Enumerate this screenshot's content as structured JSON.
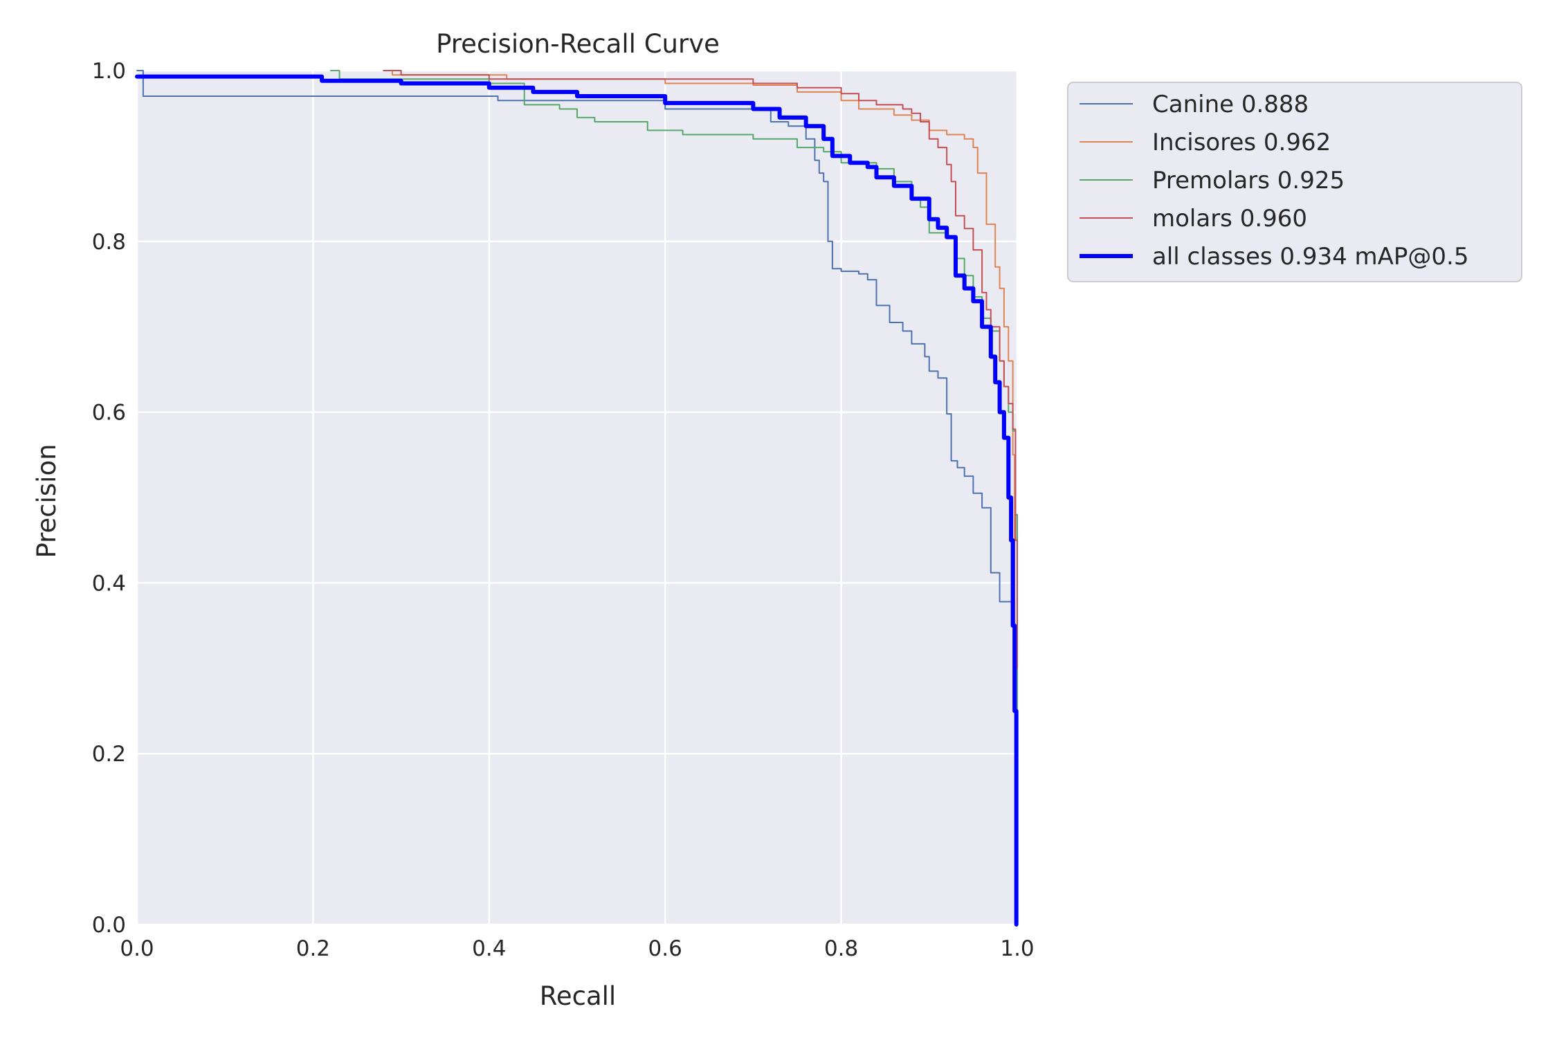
{
  "chart_data": {
    "type": "line",
    "title": "Precision-Recall Curve",
    "xlabel": "Recall",
    "ylabel": "Precision",
    "xlim": [
      0,
      1
    ],
    "ylim": [
      0,
      1
    ],
    "xticks": [
      "0.0",
      "0.2",
      "0.4",
      "0.6",
      "0.8",
      "1.0"
    ],
    "yticks": [
      "0.0",
      "0.2",
      "0.4",
      "0.6",
      "0.8",
      "1.0"
    ],
    "grid": true,
    "background": "#eaeaf2",
    "legend_position": "outside-upper-right",
    "series": [
      {
        "name": "Canine 0.888",
        "color": "#4c72b0",
        "width": 2,
        "points": [
          [
            0,
            1.0
          ],
          [
            0.005,
            1.0
          ],
          [
            0.007,
            0.97
          ],
          [
            0.4,
            0.97
          ],
          [
            0.41,
            0.965
          ],
          [
            0.6,
            0.955
          ],
          [
            0.7,
            0.955
          ],
          [
            0.72,
            0.94
          ],
          [
            0.74,
            0.935
          ],
          [
            0.76,
            0.92
          ],
          [
            0.77,
            0.895
          ],
          [
            0.775,
            0.88
          ],
          [
            0.78,
            0.87
          ],
          [
            0.785,
            0.8
          ],
          [
            0.79,
            0.768
          ],
          [
            0.8,
            0.765
          ],
          [
            0.82,
            0.762
          ],
          [
            0.83,
            0.755
          ],
          [
            0.84,
            0.725
          ],
          [
            0.855,
            0.705
          ],
          [
            0.87,
            0.695
          ],
          [
            0.88,
            0.68
          ],
          [
            0.895,
            0.665
          ],
          [
            0.9,
            0.648
          ],
          [
            0.91,
            0.64
          ],
          [
            0.92,
            0.598
          ],
          [
            0.925,
            0.543
          ],
          [
            0.932,
            0.535
          ],
          [
            0.94,
            0.525
          ],
          [
            0.95,
            0.505
          ],
          [
            0.96,
            0.488
          ],
          [
            0.97,
            0.412
          ],
          [
            0.98,
            0.378
          ],
          [
            0.995,
            0.378
          ],
          [
            0.997,
            0.25
          ],
          [
            0.999,
            0.0
          ]
        ]
      },
      {
        "name": "Incisores 0.962",
        "color": "#dd8452",
        "width": 2,
        "points": [
          [
            0.28,
            1.0
          ],
          [
            0.29,
            0.995
          ],
          [
            0.4,
            0.995
          ],
          [
            0.42,
            0.99
          ],
          [
            0.6,
            0.985
          ],
          [
            0.7,
            0.983
          ],
          [
            0.75,
            0.975
          ],
          [
            0.8,
            0.965
          ],
          [
            0.82,
            0.955
          ],
          [
            0.86,
            0.948
          ],
          [
            0.88,
            0.942
          ],
          [
            0.9,
            0.93
          ],
          [
            0.92,
            0.925
          ],
          [
            0.94,
            0.92
          ],
          [
            0.95,
            0.91
          ],
          [
            0.955,
            0.88
          ],
          [
            0.965,
            0.82
          ],
          [
            0.975,
            0.77
          ],
          [
            0.98,
            0.745
          ],
          [
            0.985,
            0.7
          ],
          [
            0.99,
            0.66
          ],
          [
            0.995,
            0.55
          ],
          [
            0.997,
            0.3
          ],
          [
            0.999,
            0.1
          ],
          [
            1.0,
            0.05
          ]
        ]
      },
      {
        "name": "Premolars 0.925",
        "color": "#55a868",
        "width": 2,
        "points": [
          [
            0.22,
            1.0
          ],
          [
            0.23,
            0.99
          ],
          [
            0.4,
            0.985
          ],
          [
            0.44,
            0.96
          ],
          [
            0.48,
            0.955
          ],
          [
            0.5,
            0.945
          ],
          [
            0.52,
            0.94
          ],
          [
            0.55,
            0.94
          ],
          [
            0.58,
            0.93
          ],
          [
            0.62,
            0.925
          ],
          [
            0.66,
            0.925
          ],
          [
            0.7,
            0.92
          ],
          [
            0.75,
            0.91
          ],
          [
            0.78,
            0.905
          ],
          [
            0.8,
            0.892
          ],
          [
            0.84,
            0.885
          ],
          [
            0.86,
            0.87
          ],
          [
            0.88,
            0.85
          ],
          [
            0.89,
            0.84
          ],
          [
            0.9,
            0.81
          ],
          [
            0.92,
            0.805
          ],
          [
            0.93,
            0.78
          ],
          [
            0.94,
            0.76
          ],
          [
            0.95,
            0.735
          ],
          [
            0.96,
            0.71
          ],
          [
            0.97,
            0.695
          ],
          [
            0.98,
            0.66
          ],
          [
            0.985,
            0.63
          ],
          [
            0.99,
            0.6
          ],
          [
            0.995,
            0.578
          ],
          [
            0.998,
            0.48
          ],
          [
            1.0,
            0.2
          ]
        ]
      },
      {
        "name": "molars 0.960",
        "color": "#c44e52",
        "width": 2,
        "points": [
          [
            0.28,
            1.0
          ],
          [
            0.3,
            0.995
          ],
          [
            0.4,
            0.99
          ],
          [
            0.6,
            0.99
          ],
          [
            0.7,
            0.985
          ],
          [
            0.75,
            0.98
          ],
          [
            0.8,
            0.973
          ],
          [
            0.82,
            0.965
          ],
          [
            0.84,
            0.96
          ],
          [
            0.87,
            0.955
          ],
          [
            0.88,
            0.95
          ],
          [
            0.89,
            0.94
          ],
          [
            0.9,
            0.92
          ],
          [
            0.91,
            0.91
          ],
          [
            0.92,
            0.89
          ],
          [
            0.925,
            0.87
          ],
          [
            0.93,
            0.83
          ],
          [
            0.94,
            0.815
          ],
          [
            0.95,
            0.79
          ],
          [
            0.96,
            0.74
          ],
          [
            0.965,
            0.72
          ],
          [
            0.97,
            0.7
          ],
          [
            0.98,
            0.66
          ],
          [
            0.985,
            0.63
          ],
          [
            0.99,
            0.61
          ],
          [
            0.995,
            0.58
          ],
          [
            0.998,
            0.45
          ],
          [
            1.0,
            0.3
          ]
        ]
      },
      {
        "name": "all classes 0.934 mAP@0.5",
        "color": "#0000ff",
        "width": 6,
        "points": [
          [
            0,
            0.993
          ],
          [
            0.2,
            0.993
          ],
          [
            0.21,
            0.988
          ],
          [
            0.3,
            0.985
          ],
          [
            0.4,
            0.98
          ],
          [
            0.45,
            0.975
          ],
          [
            0.5,
            0.97
          ],
          [
            0.6,
            0.962
          ],
          [
            0.7,
            0.955
          ],
          [
            0.73,
            0.945
          ],
          [
            0.76,
            0.935
          ],
          [
            0.78,
            0.92
          ],
          [
            0.79,
            0.9
          ],
          [
            0.81,
            0.892
          ],
          [
            0.83,
            0.887
          ],
          [
            0.84,
            0.875
          ],
          [
            0.86,
            0.865
          ],
          [
            0.88,
            0.85
          ],
          [
            0.9,
            0.826
          ],
          [
            0.91,
            0.816
          ],
          [
            0.92,
            0.805
          ],
          [
            0.93,
            0.76
          ],
          [
            0.94,
            0.745
          ],
          [
            0.95,
            0.73
          ],
          [
            0.96,
            0.7
          ],
          [
            0.97,
            0.665
          ],
          [
            0.975,
            0.635
          ],
          [
            0.98,
            0.6
          ],
          [
            0.985,
            0.57
          ],
          [
            0.99,
            0.5
          ],
          [
            0.993,
            0.45
          ],
          [
            0.995,
            0.35
          ],
          [
            0.997,
            0.25
          ],
          [
            0.999,
            0.0
          ]
        ]
      }
    ]
  }
}
